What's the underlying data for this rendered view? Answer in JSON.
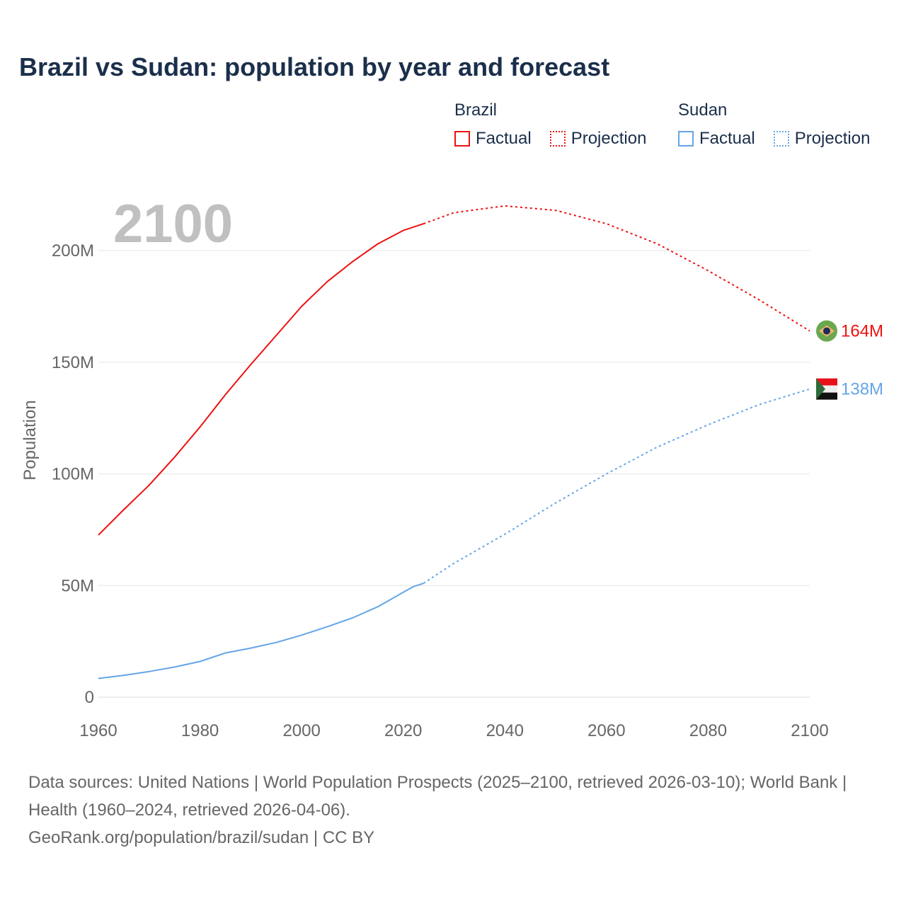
{
  "title": "Brazil vs Sudan: population by year and forecast",
  "legend": {
    "groups": [
      {
        "name": "Brazil",
        "factual": "Factual",
        "projection": "Projection",
        "color": "#ee1111"
      },
      {
        "name": "Sudan",
        "factual": "Factual",
        "projection": "Projection",
        "color": "#64a5e8"
      }
    ]
  },
  "year_label": "2100",
  "footer": {
    "sources": "Data sources: United Nations | World Population Prospects (2025–2100, retrieved 2026-03-10); World Bank | Health (1960–2024, retrieved 2026-04-06).",
    "link": "GeoRank.org/population/brazil/sudan | CC BY"
  },
  "chart_data": {
    "type": "line",
    "title": "Brazil vs Sudan: population by year and forecast",
    "xlabel": "",
    "ylabel": "Population",
    "xlim": [
      1960,
      2100
    ],
    "ylim": [
      0,
      230
    ],
    "x_ticks": [
      "1960",
      "1980",
      "2000",
      "2020",
      "2040",
      "2060",
      "2080",
      "2100"
    ],
    "y_ticks": [
      {
        "v": 0,
        "label": "0"
      },
      {
        "v": 50,
        "label": "50M"
      },
      {
        "v": 100,
        "label": "100M"
      },
      {
        "v": 150,
        "label": "150M"
      },
      {
        "v": 200,
        "label": "200M"
      }
    ],
    "grid": true,
    "units": "millions",
    "series": [
      {
        "name": "Brazil",
        "color": "#ee1111",
        "end_label": "164M",
        "factual": {
          "x": [
            1960,
            1965,
            1970,
            1975,
            1980,
            1985,
            1990,
            1995,
            2000,
            2005,
            2010,
            2015,
            2020,
            2024
          ],
          "y": [
            72.6,
            84,
            95,
            107.5,
            121,
            135.5,
            149,
            162,
            175,
            186,
            195,
            203,
            209,
            212
          ]
        },
        "projection": {
          "x": [
            2024,
            2030,
            2040,
            2050,
            2060,
            2070,
            2080,
            2090,
            2100
          ],
          "y": [
            212,
            217,
            220,
            218,
            212,
            203,
            191,
            178,
            164
          ]
        }
      },
      {
        "name": "Sudan",
        "color": "#64a5e8",
        "end_label": "138M",
        "factual": {
          "x": [
            1960,
            1965,
            1970,
            1975,
            1980,
            1985,
            1990,
            1995,
            2000,
            2005,
            2010,
            2015,
            2020,
            2022,
            2024
          ],
          "y": [
            8.4,
            9.8,
            11.5,
            13.5,
            16,
            19.8,
            22,
            24.5,
            27.8,
            31.5,
            35.5,
            40.5,
            47,
            49.5,
            51
          ]
        },
        "projection": {
          "x": [
            2024,
            2030,
            2040,
            2050,
            2060,
            2070,
            2080,
            2090,
            2100
          ],
          "y": [
            51,
            60,
            73,
            87,
            100,
            112,
            122,
            131,
            138
          ]
        }
      }
    ]
  }
}
